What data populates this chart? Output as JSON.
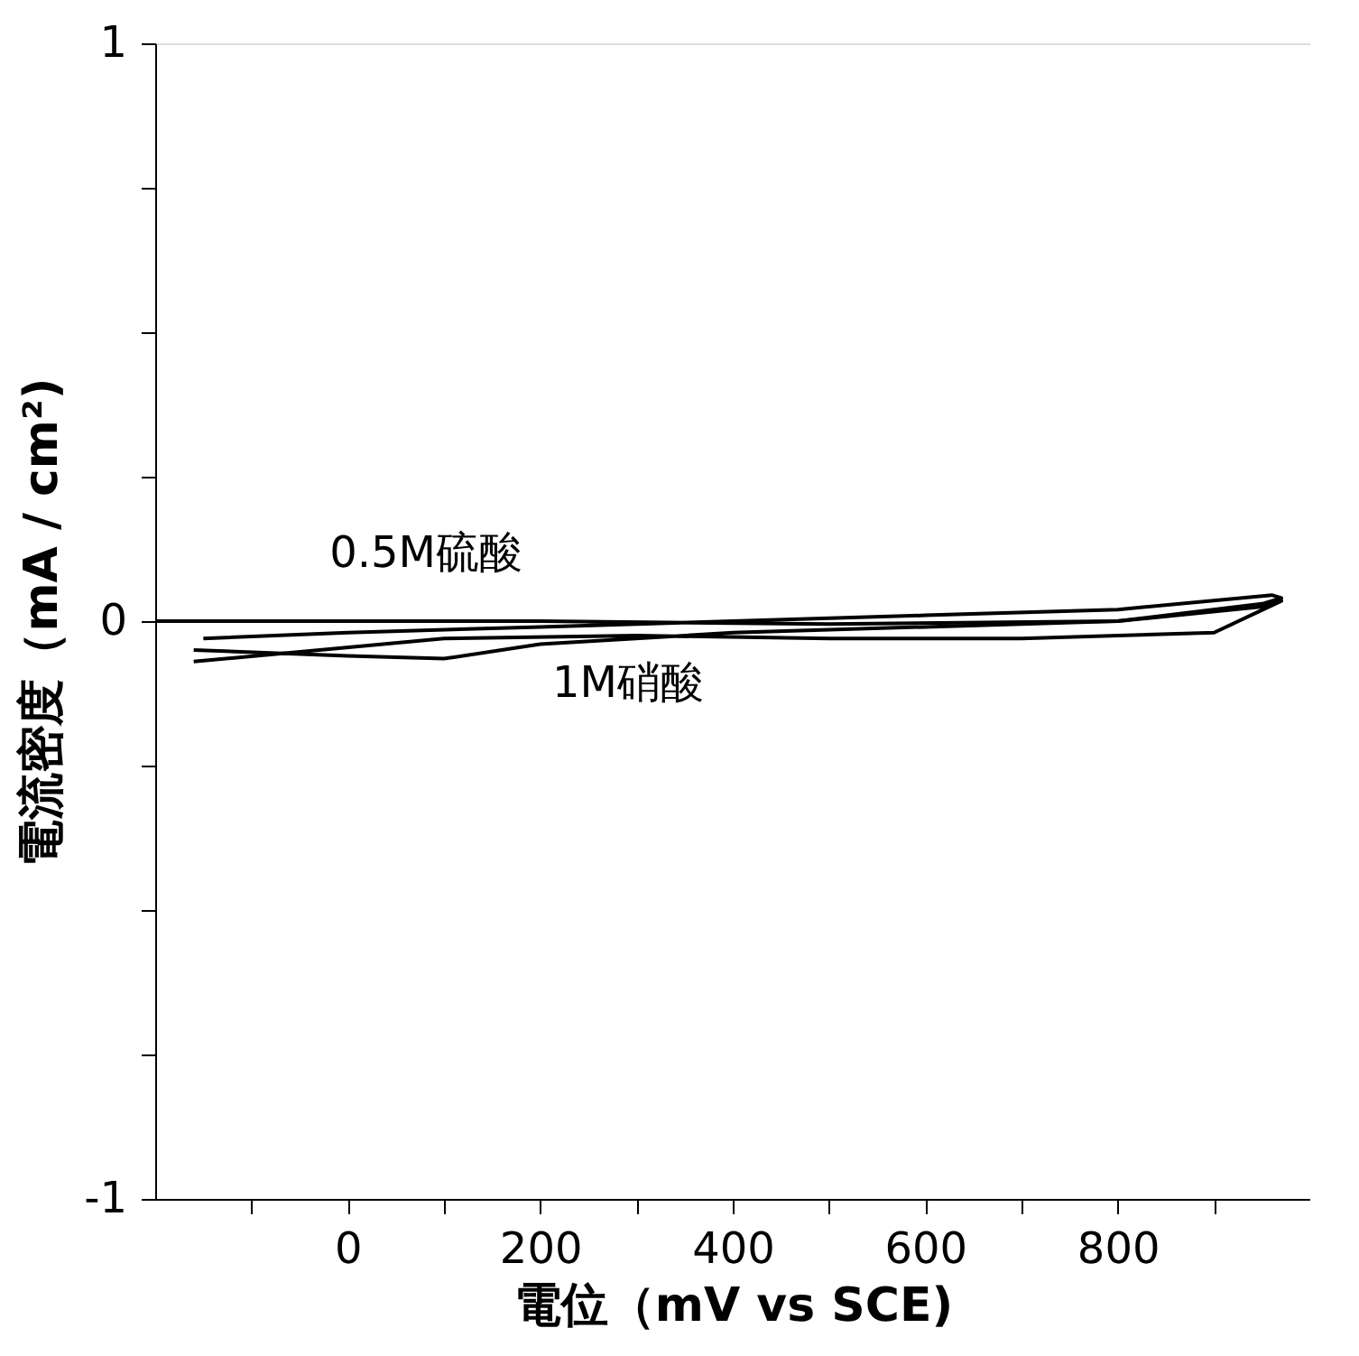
{
  "chart_data": {
    "type": "line",
    "xlabel": "電位（mV vs SCE)",
    "ylabel": "電流密度（mA / cm²)",
    "xlim": [
      -200,
      1000
    ],
    "ylim": [
      -1,
      1
    ],
    "xticks": [
      {
        "value": -100,
        "label": null
      },
      0,
      {
        "value": 100,
        "label": null
      },
      200,
      {
        "value": 300,
        "label": null
      },
      400,
      {
        "value": 500,
        "label": null
      },
      600,
      {
        "value": 700,
        "label": null
      },
      800,
      {
        "value": 900,
        "label": null
      }
    ],
    "yticks": [
      -1,
      {
        "value": -0.75,
        "label": null
      },
      {
        "value": -0.5,
        "label": null
      },
      {
        "value": -0.25,
        "label": null
      },
      0,
      {
        "value": 0.25,
        "label": null
      },
      {
        "value": 0.5,
        "label": null
      },
      {
        "value": 0.75,
        "label": null
      },
      1
    ],
    "grid": false,
    "marker": "none",
    "line_style": "solid",
    "series": [
      {
        "color": "#000000",
        "x": [
          -200,
          200,
          500,
          800,
          950,
          970,
          960,
          800,
          600,
          400,
          200,
          0,
          -150
        ],
        "values": [
          0.0,
          0.0,
          -0.005,
          0.0,
          0.03,
          0.04,
          0.045,
          0.02,
          0.01,
          0.0,
          -0.01,
          -0.02,
          -0.03
        ]
      },
      {
        "color": "#000000",
        "x": [
          -160,
          0,
          100,
          200,
          400,
          600,
          800,
          950,
          970,
          900,
          700,
          500,
          300,
          100,
          -160
        ],
        "values": [
          -0.05,
          -0.06,
          -0.065,
          -0.04,
          -0.02,
          -0.01,
          0.0,
          0.025,
          0.035,
          -0.02,
          -0.03,
          -0.03,
          -0.025,
          -0.03,
          -0.07
        ]
      }
    ],
    "annotations": [
      "0.5M硫酸",
      "1M硝酸"
    ]
  }
}
